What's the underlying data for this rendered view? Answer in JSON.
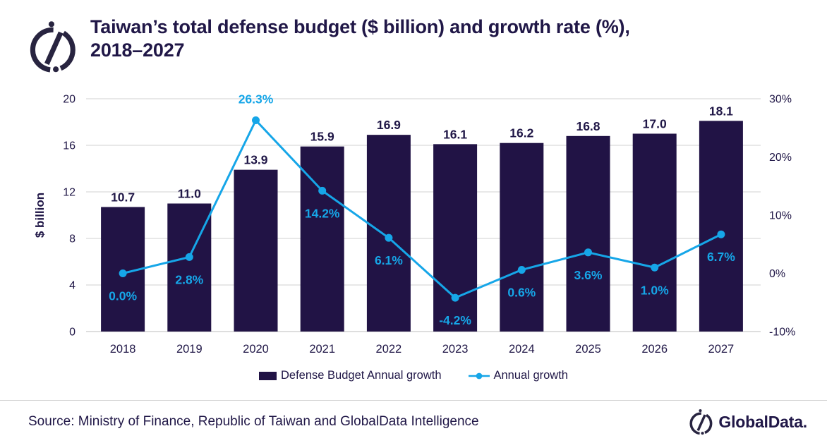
{
  "header": {
    "title_lines": [
      "Taiwan’s total defense budget ($ billion) and growth rate (%),",
      "2018–2027"
    ]
  },
  "chart_data": {
    "type": "bar+line combo",
    "categories": [
      "2018",
      "2019",
      "2020",
      "2021",
      "2022",
      "2023",
      "2024",
      "2025",
      "2026",
      "2027"
    ],
    "series": [
      {
        "name": "Defense Budget Annual growth",
        "type": "bar",
        "axis": "left",
        "color": "#211345",
        "values": [
          10.7,
          11.0,
          13.9,
          15.9,
          16.9,
          16.1,
          16.2,
          16.8,
          17.0,
          18.1
        ],
        "labels": [
          "10.7",
          "11.0",
          "13.9",
          "15.9",
          "16.9",
          "16.1",
          "16.2",
          "16.8",
          "17.0",
          "18.1"
        ]
      },
      {
        "name": "Annual growth",
        "type": "line",
        "axis": "right",
        "color": "#16a6e8",
        "values": [
          0.0,
          2.8,
          26.3,
          14.2,
          6.1,
          -4.2,
          0.6,
          3.6,
          1.0,
          6.7
        ],
        "labels": [
          "0.0%",
          "2.8%",
          "26.3%",
          "14.2%",
          "6.1%",
          "-4.2%",
          "0.6%",
          "3.6%",
          "1.0%",
          "6.7%"
        ]
      }
    ],
    "left_axis": {
      "label": "$ billion",
      "min": 0,
      "max": 20,
      "ticks": [
        0,
        4,
        8,
        12,
        16,
        20
      ]
    },
    "right_axis": {
      "min": -10,
      "max": 30,
      "ticks": [
        -10,
        0,
        10,
        20,
        30
      ],
      "tick_labels": [
        "-10%",
        "0%",
        "10%",
        "20%",
        "30%"
      ]
    },
    "grid": true,
    "legend_position": "bottom"
  },
  "footer": {
    "source": "Source: Ministry of Finance, Republic of Taiwan and GlobalData Intelligence",
    "brand": "GlobalData."
  },
  "colors": {
    "dark_text": "#201747",
    "grid_line": "#d9d9d9",
    "axis_line": "#c9c9c9",
    "divider": "#cfcfcf",
    "background": "#ffffff"
  }
}
